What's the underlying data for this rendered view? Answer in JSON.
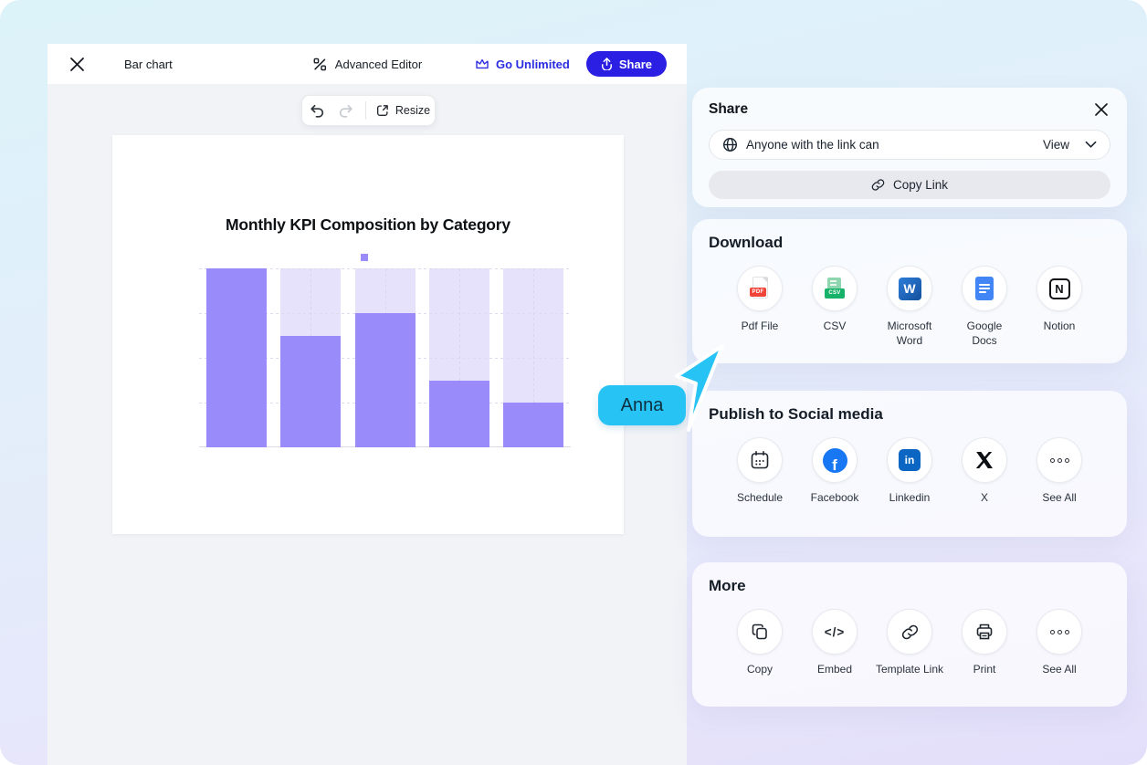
{
  "topbar": {
    "title": "Bar chart",
    "advanced_editor_label": "Advanced Editor",
    "go_unlimited_label": "Go Unlimited",
    "share_button_label": "Share"
  },
  "toolbar": {
    "resize_label": "Resize"
  },
  "collaborator": {
    "name": "Anna",
    "cursor_color": "#29c4f4"
  },
  "chart_data": {
    "type": "bar",
    "title": "Monthly KPI Composition by Category",
    "categories": [
      "",
      "",
      "",
      "",
      ""
    ],
    "series": [
      {
        "name": "",
        "values": [
          100,
          62,
          75,
          37,
          25
        ]
      }
    ],
    "track_value": 100,
    "ylim": [
      0,
      100
    ],
    "xlabel": "",
    "ylabel": "",
    "grid": "dashed horizontal lines at 25/50/75/100, dashed vertical line at each bar center",
    "legend_position": "top-center, single square marker without text",
    "colors": {
      "bar": "#9a8bfa",
      "track": "#e6e2fb"
    }
  },
  "share_card": {
    "title": "Share",
    "link_permission_text": "Anyone with the link can",
    "permission_value": "View",
    "copy_link_label": "Copy Link"
  },
  "download_card": {
    "title": "Download",
    "items": [
      {
        "icon": "pdf-file-icon",
        "label": "Pdf File"
      },
      {
        "icon": "csv-file-icon",
        "label": "CSV"
      },
      {
        "icon": "microsoft-word-icon",
        "label": "Microsoft Word"
      },
      {
        "icon": "google-docs-icon",
        "label": "Google Docs"
      },
      {
        "icon": "notion-icon",
        "label": "Notion"
      }
    ]
  },
  "publish_card": {
    "title": "Publish to Social media",
    "items": [
      {
        "icon": "schedule-calendar-icon",
        "label": "Schedule"
      },
      {
        "icon": "facebook-icon",
        "label": "Facebook"
      },
      {
        "icon": "linkedin-icon",
        "label": "Linkedin"
      },
      {
        "icon": "x-icon",
        "label": "X"
      },
      {
        "icon": "see-all-dots-icon",
        "label": "See All"
      }
    ]
  },
  "more_card": {
    "title": "More",
    "items": [
      {
        "icon": "copy-icon",
        "label": "Copy"
      },
      {
        "icon": "embed-code-icon",
        "label": "Embed"
      },
      {
        "icon": "template-link-icon",
        "label": "Template Link"
      },
      {
        "icon": "print-icon",
        "label": "Print"
      },
      {
        "icon": "see-all-dots-icon",
        "label": "See All"
      }
    ]
  },
  "colors": {
    "accent_blue": "#2a1fe2",
    "cursor_cyan": "#26c3f4",
    "bar_purple": "#9a8bfa",
    "bar_track": "#e6e2fb",
    "canvas_bg": "#f1f3f7"
  }
}
